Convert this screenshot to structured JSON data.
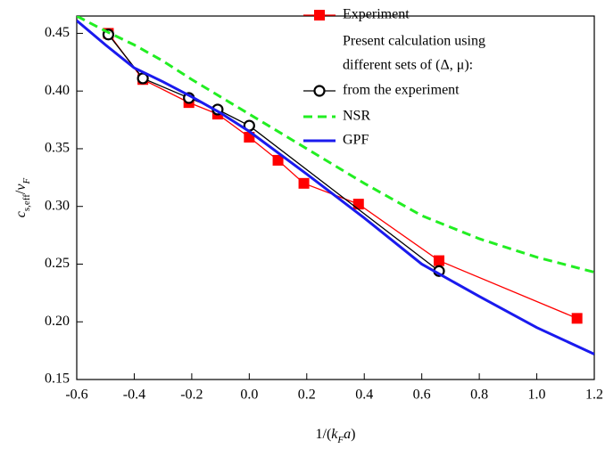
{
  "chart_data": {
    "type": "line",
    "x_label": [
      "1/(",
      "k",
      "F",
      "a",
      ")"
    ],
    "y_label": [
      "c",
      "s,eff",
      "/",
      "v",
      "F"
    ],
    "legend_title": [
      "Present calculation using",
      "different sets of (Δ, μ):"
    ],
    "legend": "upper right",
    "xlim": [
      -0.6,
      1.2
    ],
    "xticks": [
      -0.6,
      -0.4,
      -0.2,
      {
        "value": 0,
        "label": "0.0"
      },
      0.2,
      0.4,
      0.6,
      0.8,
      {
        "value": 1,
        "label": "1.0"
      },
      1.2
    ],
    "ylim": [
      0.15,
      0.465
    ],
    "yticks": [
      0.15,
      {
        "value": 0.2,
        "label": "0.20"
      },
      0.25,
      {
        "value": 0.3,
        "label": "0.30"
      },
      0.35,
      {
        "value": 0.4,
        "label": "0.40"
      },
      0.45
    ],
    "series": [
      {
        "name": "Experiment",
        "color": "#ff0000",
        "marker": "square",
        "dash": "solid",
        "x": [
          -0.49,
          -0.37,
          -0.21,
          -0.11,
          0,
          0.1,
          0.19,
          0.38,
          0.66,
          1.14
        ],
        "values": [
          0.45,
          0.41,
          0.39,
          0.38,
          0.36,
          0.34,
          0.32,
          0.302,
          0.253,
          0.203
        ]
      },
      {
        "name": "from the experiment",
        "color": "#000000",
        "marker": "circle",
        "dash": "solid",
        "x": [
          -0.49,
          -0.37,
          -0.21,
          -0.11,
          0,
          0.66
        ],
        "values": [
          0.449,
          0.411,
          0.394,
          0.384,
          0.37,
          0.244
        ]
      },
      {
        "name": "NSR",
        "color": "#22ee22",
        "marker": "none",
        "dash": "dashed",
        "x": [
          -0.6,
          -0.5,
          -0.4,
          -0.3,
          -0.2,
          -0.1,
          0,
          0.2,
          0.4,
          0.6,
          0.8,
          1,
          1.2
        ],
        "values": [
          0.465,
          0.452,
          0.44,
          0.426,
          0.41,
          0.395,
          0.38,
          0.35,
          0.32,
          0.292,
          0.272,
          0.256,
          0.243
        ]
      },
      {
        "name": "GPF",
        "color": "#1a1aee",
        "marker": "none",
        "dash": "solid",
        "x": [
          -0.6,
          -0.5,
          -0.4,
          -0.3,
          -0.2,
          -0.1,
          0,
          0.2,
          0.4,
          0.6,
          0.8,
          1,
          1.2
        ],
        "values": [
          0.461,
          0.44,
          0.42,
          0.408,
          0.395,
          0.381,
          0.365,
          0.328,
          0.29,
          0.25,
          0.222,
          0.195,
          0.172
        ]
      }
    ]
  }
}
